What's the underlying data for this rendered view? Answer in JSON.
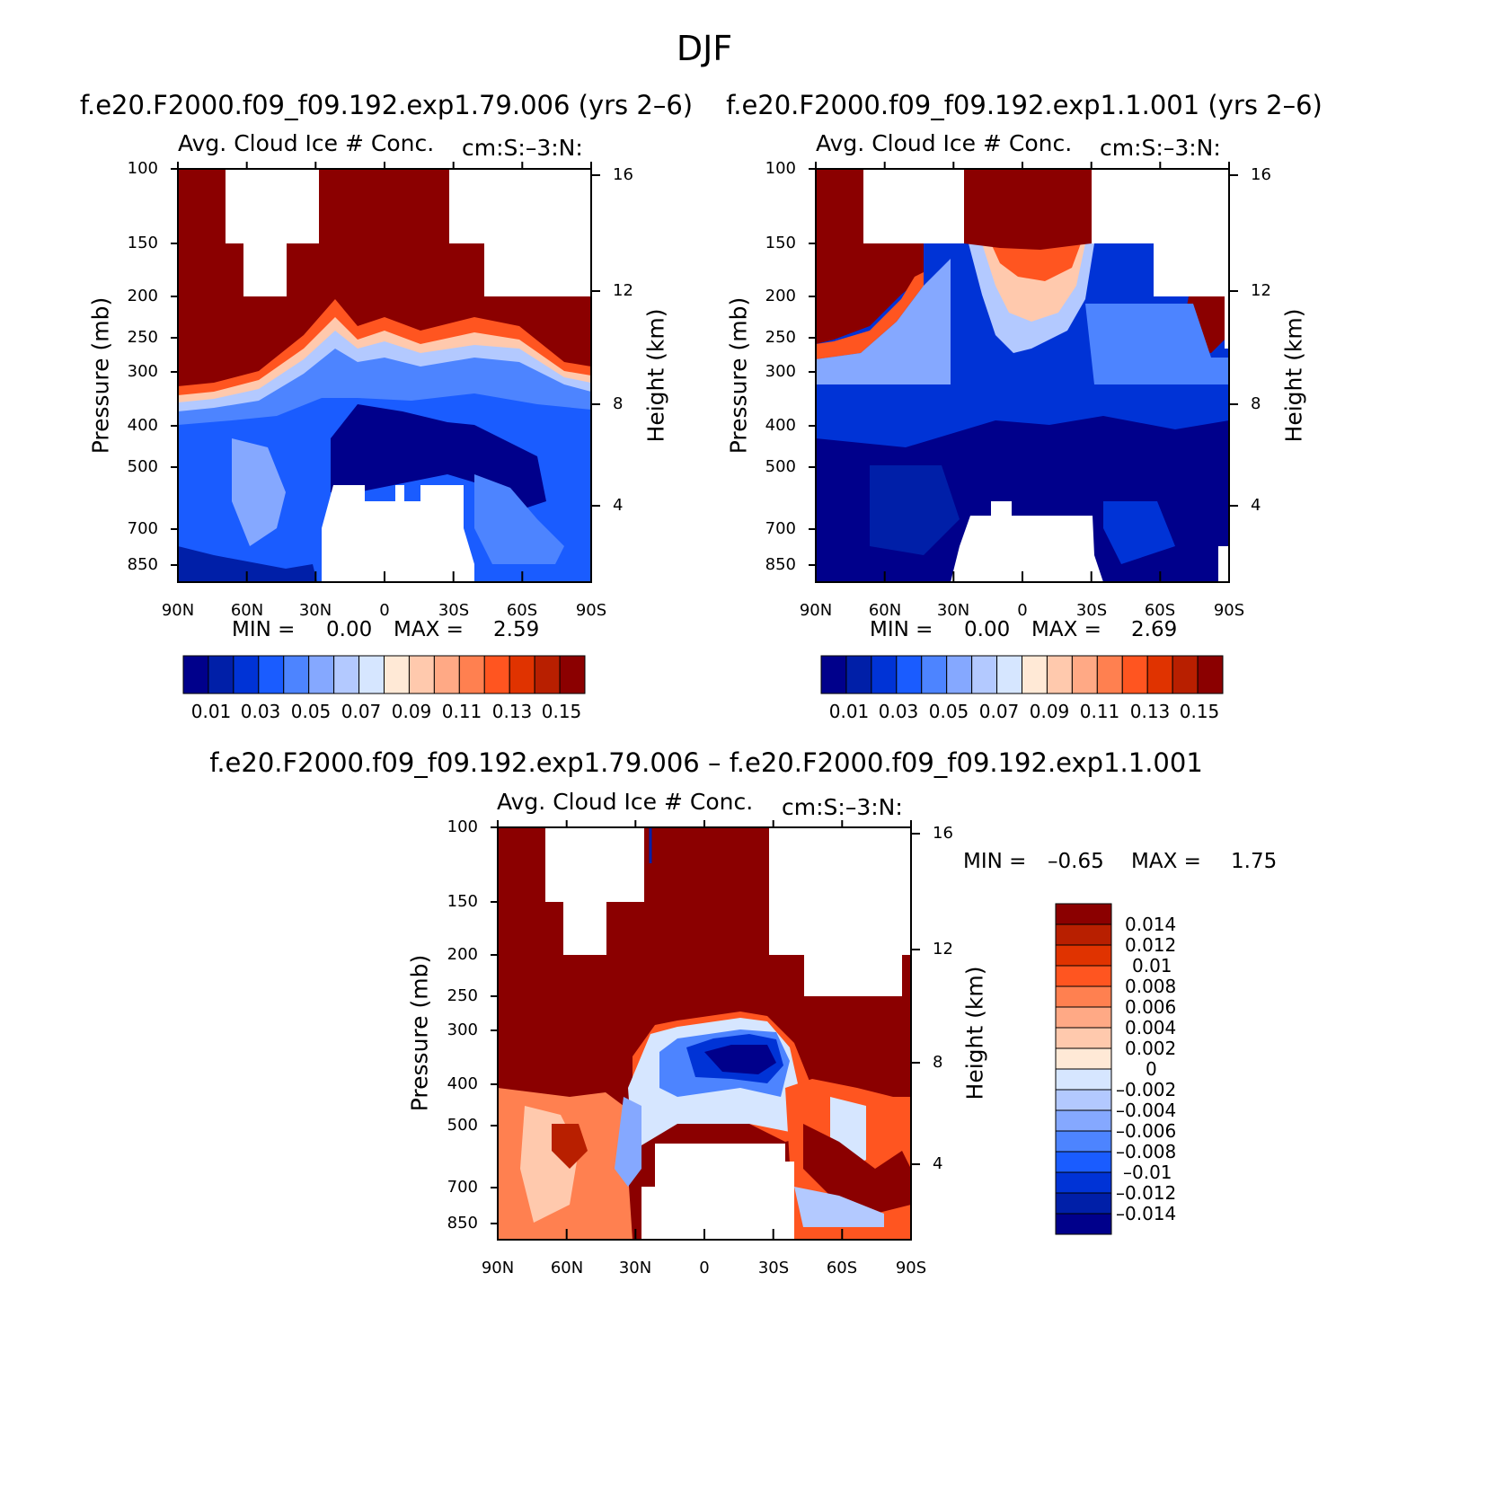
{
  "figure": {
    "title": "DJF"
  },
  "colors": {
    "abs_scale": [
      "#00008b",
      "#001fa8",
      "#0033d6",
      "#1a5cff",
      "#4d84ff",
      "#85a8ff",
      "#b3c9ff",
      "#d6e6ff",
      "#ffe9d6",
      "#ffc9ad",
      "#ffa985",
      "#ff8050",
      "#ff5520",
      "#e03300",
      "#b81f00",
      "#8b0000"
    ],
    "diff_scale": [
      "#00008b",
      "#001fa8",
      "#0033d6",
      "#1a5cff",
      "#4d84ff",
      "#85a8ff",
      "#b3c9ff",
      "#d6e6ff",
      "#ffe9d6",
      "#ffc9ad",
      "#ffa985",
      "#ff8050",
      "#ff5520",
      "#e03300",
      "#b81f00",
      "#8b0000"
    ],
    "missing": "#ffffff"
  },
  "chart_data": [
    {
      "type": "heatmap",
      "case_title": "f.e20.F2000.f09_f09.192.exp1.79.006 (yrs 2–6)",
      "title": "Avg. Cloud Ice # Conc.",
      "units": "cm:S:–3:N:",
      "ylabel": "Pressure (mb)",
      "y2label": "Height (km)",
      "xticks": [
        "90N",
        "60N",
        "30N",
        "0",
        "30S",
        "60S",
        "90S"
      ],
      "x_range": [
        90,
        -90
      ],
      "yticks": [
        "100",
        "150",
        "200",
        "250",
        "300",
        "400",
        "500",
        "700",
        "850"
      ],
      "y_range_mb": [
        100,
        1000
      ],
      "y2ticks": [
        "16",
        "12",
        "8",
        "4"
      ],
      "min_label": "MIN =",
      "min": "0.00",
      "max_label": "MAX =",
      "max": "2.59",
      "colorbar_labels": [
        "0.01",
        "0.03",
        "0.05",
        "0.07",
        "0.09",
        "0.11",
        "0.13",
        "0.15"
      ],
      "fields": {
        "upper_level_mb": 100,
        "high_value_boundary_mb": {
          "lat": [
            90,
            60,
            30,
            15,
            0,
            -15,
            -30,
            -60,
            -90
          ],
          "p": [
            330,
            330,
            285,
            235,
            275,
            260,
            270,
            310,
            305
          ]
        }
      }
    },
    {
      "type": "heatmap",
      "case_title": "f.e20.F2000.f09_f09.192.exp1.1.001 (yrs 2–6)",
      "title": "Avg. Cloud Ice # Conc.",
      "units": "cm:S:–3:N:",
      "ylabel": "Pressure (mb)",
      "y2label": "Height (km)",
      "xticks": [
        "90N",
        "60N",
        "30N",
        "0",
        "30S",
        "60S",
        "90S"
      ],
      "x_range": [
        90,
        -90
      ],
      "yticks": [
        "100",
        "150",
        "200",
        "250",
        "300",
        "400",
        "500",
        "700",
        "850"
      ],
      "y_range_mb": [
        100,
        1000
      ],
      "y2ticks": [
        "16",
        "12",
        "8",
        "4"
      ],
      "min_label": "MIN =",
      "min": "0.00",
      "max_label": "MAX =",
      "max": "2.69",
      "colorbar_labels": [
        "0.01",
        "0.03",
        "0.05",
        "0.07",
        "0.09",
        "0.11",
        "0.13",
        "0.15"
      ]
    },
    {
      "type": "heatmap",
      "case_title": "f.e20.F2000.f09_f09.192.exp1.79.006 – f.e20.F2000.f09_f09.192.exp1.1.001",
      "title": "Avg. Cloud Ice # Conc.",
      "units": "cm:S:–3:N:",
      "ylabel": "Pressure (mb)",
      "y2label": "Height (km)",
      "xticks": [
        "90N",
        "60N",
        "30N",
        "0",
        "30S",
        "60S",
        "90S"
      ],
      "x_range": [
        90,
        -90
      ],
      "yticks": [
        "100",
        "150",
        "200",
        "250",
        "300",
        "400",
        "500",
        "700",
        "850"
      ],
      "y_range_mb": [
        100,
        1000
      ],
      "y2ticks": [
        "16",
        "12",
        "8",
        "4"
      ],
      "min_label": "MIN =",
      "min": "–0.65",
      "max_label": "MAX =",
      "max": "1.75",
      "colorbar_labels": [
        "0.014",
        "0.012",
        "0.01",
        "0.008",
        "0.006",
        "0.004",
        "0.002",
        "0",
        "–0.002",
        "–0.004",
        "–0.006",
        "–0.008",
        "–0.01",
        "–0.012",
        "–0.014"
      ]
    }
  ]
}
